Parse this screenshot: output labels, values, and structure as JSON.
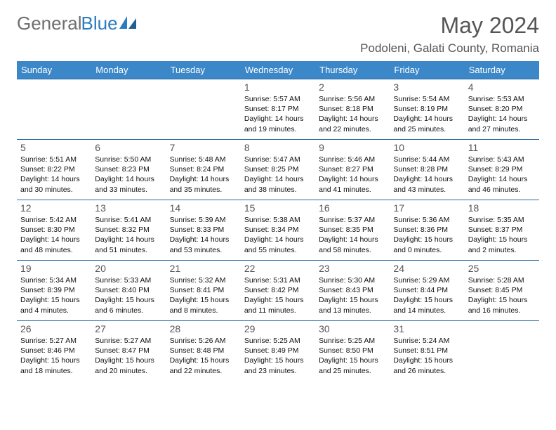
{
  "logo": {
    "text1": "General",
    "text2": "Blue"
  },
  "title": "May 2024",
  "location": "Podoleni, Galati County, Romania",
  "colors": {
    "header_bg": "#3b87c8",
    "header_text": "#ffffff",
    "row_border": "#2b6aa3",
    "title_color": "#555555",
    "logo_gray": "#6e6e6e",
    "logo_blue": "#2b7bbf"
  },
  "weekdays": [
    "Sunday",
    "Monday",
    "Tuesday",
    "Wednesday",
    "Thursday",
    "Friday",
    "Saturday"
  ],
  "weeks": [
    [
      {
        "day": "",
        "sunrise": "",
        "sunset": "",
        "daylight": ""
      },
      {
        "day": "",
        "sunrise": "",
        "sunset": "",
        "daylight": ""
      },
      {
        "day": "",
        "sunrise": "",
        "sunset": "",
        "daylight": ""
      },
      {
        "day": "1",
        "sunrise": "Sunrise: 5:57 AM",
        "sunset": "Sunset: 8:17 PM",
        "daylight": "Daylight: 14 hours and 19 minutes."
      },
      {
        "day": "2",
        "sunrise": "Sunrise: 5:56 AM",
        "sunset": "Sunset: 8:18 PM",
        "daylight": "Daylight: 14 hours and 22 minutes."
      },
      {
        "day": "3",
        "sunrise": "Sunrise: 5:54 AM",
        "sunset": "Sunset: 8:19 PM",
        "daylight": "Daylight: 14 hours and 25 minutes."
      },
      {
        "day": "4",
        "sunrise": "Sunrise: 5:53 AM",
        "sunset": "Sunset: 8:20 PM",
        "daylight": "Daylight: 14 hours and 27 minutes."
      }
    ],
    [
      {
        "day": "5",
        "sunrise": "Sunrise: 5:51 AM",
        "sunset": "Sunset: 8:22 PM",
        "daylight": "Daylight: 14 hours and 30 minutes."
      },
      {
        "day": "6",
        "sunrise": "Sunrise: 5:50 AM",
        "sunset": "Sunset: 8:23 PM",
        "daylight": "Daylight: 14 hours and 33 minutes."
      },
      {
        "day": "7",
        "sunrise": "Sunrise: 5:48 AM",
        "sunset": "Sunset: 8:24 PM",
        "daylight": "Daylight: 14 hours and 35 minutes."
      },
      {
        "day": "8",
        "sunrise": "Sunrise: 5:47 AM",
        "sunset": "Sunset: 8:25 PM",
        "daylight": "Daylight: 14 hours and 38 minutes."
      },
      {
        "day": "9",
        "sunrise": "Sunrise: 5:46 AM",
        "sunset": "Sunset: 8:27 PM",
        "daylight": "Daylight: 14 hours and 41 minutes."
      },
      {
        "day": "10",
        "sunrise": "Sunrise: 5:44 AM",
        "sunset": "Sunset: 8:28 PM",
        "daylight": "Daylight: 14 hours and 43 minutes."
      },
      {
        "day": "11",
        "sunrise": "Sunrise: 5:43 AM",
        "sunset": "Sunset: 8:29 PM",
        "daylight": "Daylight: 14 hours and 46 minutes."
      }
    ],
    [
      {
        "day": "12",
        "sunrise": "Sunrise: 5:42 AM",
        "sunset": "Sunset: 8:30 PM",
        "daylight": "Daylight: 14 hours and 48 minutes."
      },
      {
        "day": "13",
        "sunrise": "Sunrise: 5:41 AM",
        "sunset": "Sunset: 8:32 PM",
        "daylight": "Daylight: 14 hours and 51 minutes."
      },
      {
        "day": "14",
        "sunrise": "Sunrise: 5:39 AM",
        "sunset": "Sunset: 8:33 PM",
        "daylight": "Daylight: 14 hours and 53 minutes."
      },
      {
        "day": "15",
        "sunrise": "Sunrise: 5:38 AM",
        "sunset": "Sunset: 8:34 PM",
        "daylight": "Daylight: 14 hours and 55 minutes."
      },
      {
        "day": "16",
        "sunrise": "Sunrise: 5:37 AM",
        "sunset": "Sunset: 8:35 PM",
        "daylight": "Daylight: 14 hours and 58 minutes."
      },
      {
        "day": "17",
        "sunrise": "Sunrise: 5:36 AM",
        "sunset": "Sunset: 8:36 PM",
        "daylight": "Daylight: 15 hours and 0 minutes."
      },
      {
        "day": "18",
        "sunrise": "Sunrise: 5:35 AM",
        "sunset": "Sunset: 8:37 PM",
        "daylight": "Daylight: 15 hours and 2 minutes."
      }
    ],
    [
      {
        "day": "19",
        "sunrise": "Sunrise: 5:34 AM",
        "sunset": "Sunset: 8:39 PM",
        "daylight": "Daylight: 15 hours and 4 minutes."
      },
      {
        "day": "20",
        "sunrise": "Sunrise: 5:33 AM",
        "sunset": "Sunset: 8:40 PM",
        "daylight": "Daylight: 15 hours and 6 minutes."
      },
      {
        "day": "21",
        "sunrise": "Sunrise: 5:32 AM",
        "sunset": "Sunset: 8:41 PM",
        "daylight": "Daylight: 15 hours and 8 minutes."
      },
      {
        "day": "22",
        "sunrise": "Sunrise: 5:31 AM",
        "sunset": "Sunset: 8:42 PM",
        "daylight": "Daylight: 15 hours and 11 minutes."
      },
      {
        "day": "23",
        "sunrise": "Sunrise: 5:30 AM",
        "sunset": "Sunset: 8:43 PM",
        "daylight": "Daylight: 15 hours and 13 minutes."
      },
      {
        "day": "24",
        "sunrise": "Sunrise: 5:29 AM",
        "sunset": "Sunset: 8:44 PM",
        "daylight": "Daylight: 15 hours and 14 minutes."
      },
      {
        "day": "25",
        "sunrise": "Sunrise: 5:28 AM",
        "sunset": "Sunset: 8:45 PM",
        "daylight": "Daylight: 15 hours and 16 minutes."
      }
    ],
    [
      {
        "day": "26",
        "sunrise": "Sunrise: 5:27 AM",
        "sunset": "Sunset: 8:46 PM",
        "daylight": "Daylight: 15 hours and 18 minutes."
      },
      {
        "day": "27",
        "sunrise": "Sunrise: 5:27 AM",
        "sunset": "Sunset: 8:47 PM",
        "daylight": "Daylight: 15 hours and 20 minutes."
      },
      {
        "day": "28",
        "sunrise": "Sunrise: 5:26 AM",
        "sunset": "Sunset: 8:48 PM",
        "daylight": "Daylight: 15 hours and 22 minutes."
      },
      {
        "day": "29",
        "sunrise": "Sunrise: 5:25 AM",
        "sunset": "Sunset: 8:49 PM",
        "daylight": "Daylight: 15 hours and 23 minutes."
      },
      {
        "day": "30",
        "sunrise": "Sunrise: 5:25 AM",
        "sunset": "Sunset: 8:50 PM",
        "daylight": "Daylight: 15 hours and 25 minutes."
      },
      {
        "day": "31",
        "sunrise": "Sunrise: 5:24 AM",
        "sunset": "Sunset: 8:51 PM",
        "daylight": "Daylight: 15 hours and 26 minutes."
      },
      {
        "day": "",
        "sunrise": "",
        "sunset": "",
        "daylight": ""
      }
    ]
  ]
}
